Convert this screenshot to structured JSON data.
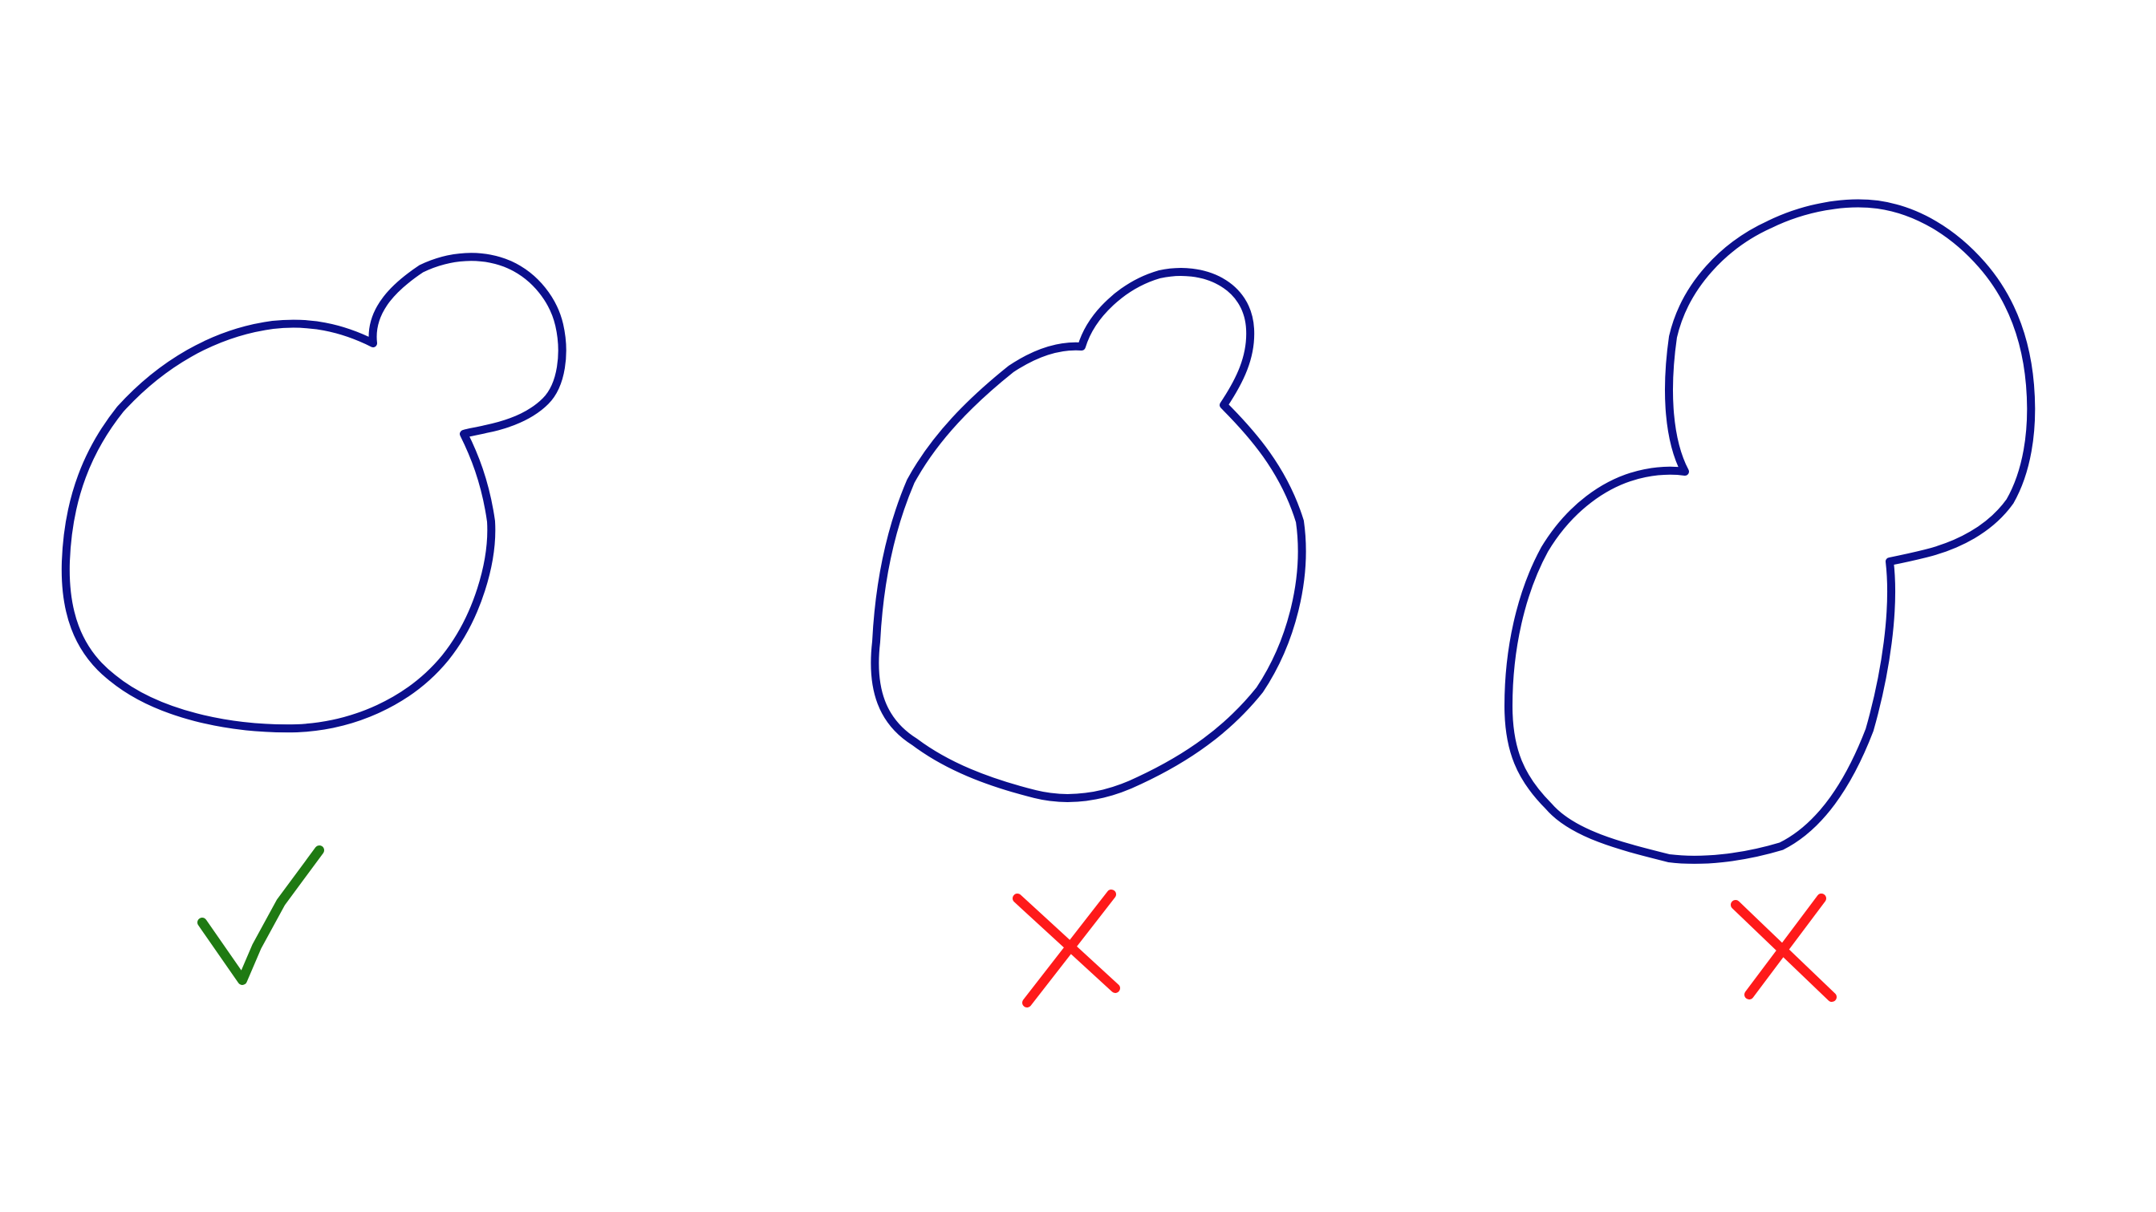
{
  "diagram": {
    "colors": {
      "background": "#ffffff",
      "outline": "#0b0f8c",
      "correct": "#1f7a12",
      "incorrect": "#ff1a1a"
    },
    "panels": [
      {
        "shape": "large-cell-with-small-bud",
        "verdict": "correct",
        "verdict_icon": "checkmark-icon"
      },
      {
        "shape": "large-cell-with-small-bud",
        "verdict": "incorrect",
        "verdict_icon": "cross-icon"
      },
      {
        "shape": "two-large-lobes",
        "verdict": "incorrect",
        "verdict_icon": "cross-icon"
      }
    ]
  }
}
